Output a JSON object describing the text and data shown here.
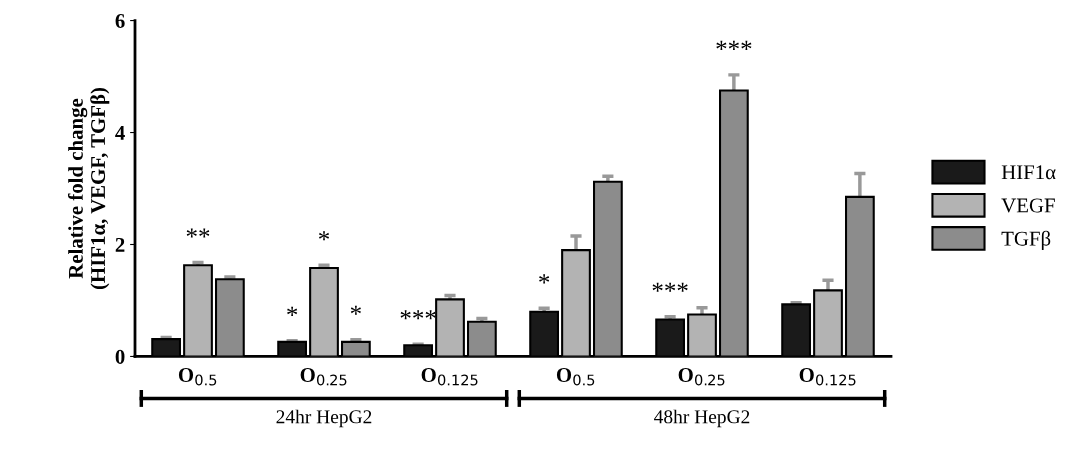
{
  "chart_data": {
    "type": "bar",
    "ylabel": "Relative fold change\n(HIF1α, VEGF, TGFβ)",
    "categories": [
      "O$_{0.5}$",
      "O$_{0.25}$",
      "O$_{0.125}$",
      "O$_{0.5}$",
      "O$_{0.25}$",
      "O$_{0.125}$"
    ],
    "series": [
      {
        "name": "HIF1α",
        "color": "#1a1a1a",
        "values": [
          0.31,
          0.26,
          0.2,
          0.8,
          0.66,
          0.93
        ],
        "errors": [
          0.03,
          0.02,
          0.02,
          0.06,
          0.05,
          0.03
        ],
        "value_labels": [
          null,
          "*",
          "***",
          "*",
          "***",
          null
        ]
      },
      {
        "name": "VEGF",
        "color": "#b3b3b3",
        "values": [
          1.63,
          1.58,
          1.02,
          1.9,
          0.75,
          1.18
        ],
        "errors": [
          0.05,
          0.05,
          0.07,
          0.25,
          0.12,
          0.18
        ],
        "value_labels": [
          "**",
          "*",
          null,
          null,
          null,
          null
        ]
      },
      {
        "name": "TGFβ",
        "color": "#8c8c8c",
        "values": [
          1.38,
          0.26,
          0.62,
          3.12,
          4.75,
          2.85
        ],
        "errors": [
          0.04,
          0.04,
          0.06,
          0.1,
          0.28,
          0.42
        ],
        "value_labels": [
          null,
          "*",
          null,
          null,
          "***",
          null
        ]
      }
    ],
    "ylim": [
      0,
      6
    ],
    "yticks": [
      0,
      2,
      4,
      6
    ],
    "grid": false,
    "legend": "right",
    "annotations": [
      "24hr HepG2",
      "48hr HepG2"
    ]
  }
}
